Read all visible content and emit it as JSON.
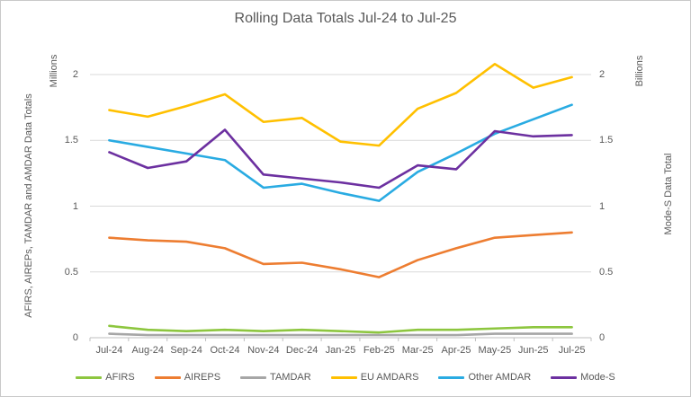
{
  "window": {
    "background": "#FFFFFF",
    "border_color": "#C9C9C9",
    "text_color": "#595959"
  },
  "chart_data": {
    "type": "line",
    "title": "Rolling Data Totals Jul-24 to Jul-25",
    "grid": true,
    "legend_position": "bottom",
    "grid_color": "#D9D9D9",
    "axis_line_color": "#BFBFBF",
    "categories": [
      "Jul-24",
      "Aug-24",
      "Sep-24",
      "Oct-24",
      "Nov-24",
      "Dec-24",
      "Jan-25",
      "Feb-25",
      "Mar-25",
      "Apr-25",
      "May-25",
      "Jun-25",
      "Jul-25"
    ],
    "left_axis": {
      "title": "AFIRS, AIREPs, TAMDAR and AMDAR Data Totals",
      "unit_label": "Millions",
      "ticks": [
        0,
        0.5,
        1,
        1.5,
        2
      ],
      "range": [
        0,
        2
      ]
    },
    "right_axis": {
      "title": "Mode-S Data Total",
      "unit_label": "Billions",
      "ticks": [
        0,
        0.5,
        1,
        1.5,
        2
      ],
      "range": [
        0,
        2
      ]
    },
    "series": [
      {
        "name": "AFIRS",
        "axis": "left",
        "color": "#8DC63F",
        "values": [
          0.09,
          0.06,
          0.05,
          0.06,
          0.05,
          0.06,
          0.05,
          0.04,
          0.06,
          0.06,
          0.07,
          0.08,
          0.08
        ]
      },
      {
        "name": "AIREPS",
        "axis": "left",
        "color": "#ED7D31",
        "values": [
          0.76,
          0.74,
          0.73,
          0.68,
          0.56,
          0.57,
          0.52,
          0.46,
          0.59,
          0.68,
          0.76,
          0.78,
          0.8
        ]
      },
      {
        "name": "TAMDAR",
        "axis": "left",
        "color": "#A6A6A6",
        "values": [
          0.03,
          0.02,
          0.02,
          0.02,
          0.02,
          0.02,
          0.02,
          0.02,
          0.02,
          0.02,
          0.03,
          0.03,
          0.03
        ]
      },
      {
        "name": "EU AMDARS",
        "axis": "left",
        "color": "#FFC000",
        "values": [
          1.73,
          1.68,
          1.76,
          1.85,
          1.64,
          1.67,
          1.49,
          1.46,
          1.74,
          1.86,
          2.08,
          1.9,
          1.98
        ]
      },
      {
        "name": "Other AMDAR",
        "axis": "left",
        "color": "#29ABE2",
        "values": [
          1.5,
          1.45,
          1.4,
          1.35,
          1.14,
          1.17,
          1.1,
          1.04,
          1.26,
          1.4,
          1.55,
          1.66,
          1.77
        ]
      },
      {
        "name": "Mode-S",
        "axis": "right",
        "color": "#6C30A0",
        "values": [
          1.41,
          1.29,
          1.34,
          1.58,
          1.24,
          1.21,
          1.18,
          1.14,
          1.31,
          1.28,
          1.57,
          1.53,
          1.54
        ]
      }
    ]
  }
}
